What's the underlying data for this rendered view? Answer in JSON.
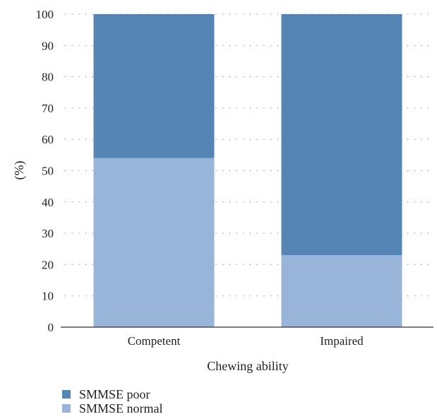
{
  "chart_data": {
    "type": "bar",
    "stacked": true,
    "categories": [
      "Competent",
      "Impaired"
    ],
    "series": [
      {
        "name": "SMMSE normal",
        "values": [
          54,
          23
        ],
        "color": "#98b4d8"
      },
      {
        "name": "SMMSE poor",
        "values": [
          46,
          77
        ],
        "color": "#5585b5"
      }
    ],
    "xlabel": "Chewing ability",
    "ylabel": "(%)",
    "ylim": [
      0,
      100
    ],
    "yticks": [
      0,
      10,
      20,
      30,
      40,
      50,
      60,
      70,
      80,
      90,
      100
    ],
    "grid": "dotted-horizontal",
    "legend": {
      "position": "bottom-left",
      "items": [
        {
          "label": "SMMSE poor",
          "color": "#5585b5"
        },
        {
          "label": "SMMSE normal",
          "color": "#98b4d8"
        }
      ]
    }
  }
}
